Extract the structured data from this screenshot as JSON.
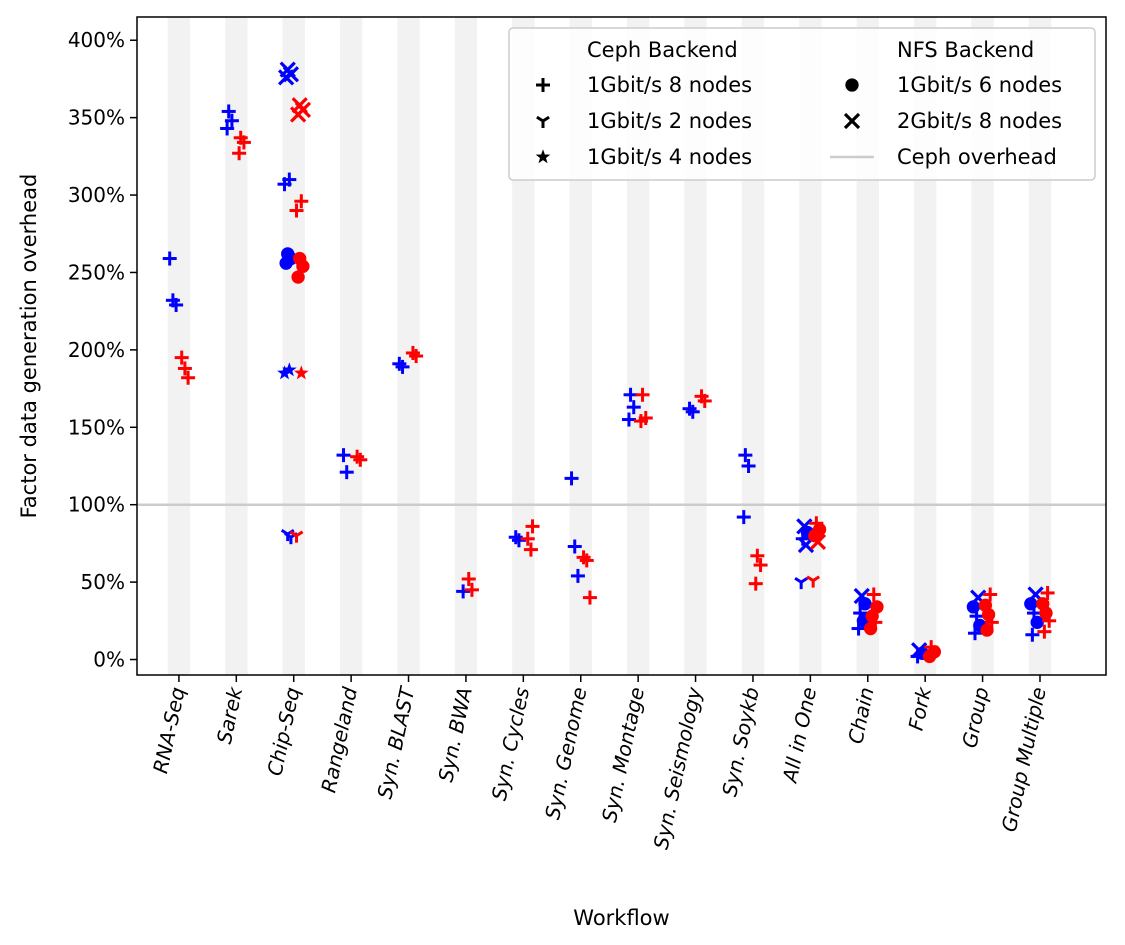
{
  "colors": {
    "ceph": "#ff0000",
    "nfs": "#0000ff",
    "overhead_line": "#cccccc",
    "band": "#f2f2f2"
  },
  "chart_data": {
    "type": "scatter",
    "xlabel": "Workflow",
    "ylabel": "Factor data generation overhead",
    "ylim": [
      -10,
      415
    ],
    "y_ticks": [
      "0%",
      "50%",
      "100%",
      "150%",
      "200%",
      "250%",
      "300%",
      "350%",
      "400%"
    ],
    "y_tick_values": [
      0,
      50,
      100,
      150,
      200,
      250,
      300,
      350,
      400
    ],
    "categories": [
      "RNA-Seq",
      "Sarek",
      "Chip-Seq",
      "Rangeland",
      "Syn. BLAST",
      "Syn. BWA",
      "Syn. Cycles",
      "Syn. Genome",
      "Syn. Montage",
      "Syn. Seismology",
      "Syn. Soykb",
      "All in One",
      "Chain",
      "Fork",
      "Group",
      "Group Multiple"
    ],
    "reference_line": {
      "y": 100,
      "label": "Ceph overhead"
    },
    "grid": false,
    "legend": {
      "position": "top-right",
      "ceph_header": "Ceph Backend",
      "nfs_header": "NFS Backend",
      "entries": [
        {
          "label": "1Gbit/s 8 nodes",
          "marker": "plus"
        },
        {
          "label": "1Gbit/s 2 nodes",
          "marker": "tri"
        },
        {
          "label": "1Gbit/s 4 nodes",
          "marker": "star"
        },
        {
          "label": "1Gbit/s 6 nodes",
          "marker": "circle"
        },
        {
          "label": "2Gbit/s 8 nodes",
          "marker": "x"
        },
        {
          "label": "Ceph overhead",
          "marker": "line"
        }
      ]
    },
    "series": [
      {
        "backend": "NFS",
        "points": [
          {
            "c": 0,
            "m": "plus",
            "y": 259
          },
          {
            "c": 0,
            "m": "plus",
            "y": 232
          },
          {
            "c": 0,
            "m": "plus",
            "y": 229
          },
          {
            "c": 1,
            "m": "plus",
            "y": 354
          },
          {
            "c": 1,
            "m": "plus",
            "y": 348
          },
          {
            "c": 1,
            "m": "plus",
            "y": 343
          },
          {
            "c": 2,
            "m": "x",
            "y": 381
          },
          {
            "c": 2,
            "m": "x",
            "y": 378
          },
          {
            "c": 2,
            "m": "x",
            "y": 376
          },
          {
            "c": 2,
            "m": "plus",
            "y": 310
          },
          {
            "c": 2,
            "m": "plus",
            "y": 307
          },
          {
            "c": 2,
            "m": "circle",
            "y": 262
          },
          {
            "c": 2,
            "m": "circle",
            "y": 259
          },
          {
            "c": 2,
            "m": "circle",
            "y": 256
          },
          {
            "c": 2,
            "m": "star",
            "y": 187
          },
          {
            "c": 2,
            "m": "star",
            "y": 185
          },
          {
            "c": 2,
            "m": "tri",
            "y": 81
          },
          {
            "c": 2,
            "m": "tri",
            "y": 79
          },
          {
            "c": 3,
            "m": "plus",
            "y": 132
          },
          {
            "c": 3,
            "m": "plus",
            "y": 121
          },
          {
            "c": 4,
            "m": "plus",
            "y": 191
          },
          {
            "c": 4,
            "m": "plus",
            "y": 189
          },
          {
            "c": 5,
            "m": "plus",
            "y": 44
          },
          {
            "c": 6,
            "m": "plus",
            "y": 79
          },
          {
            "c": 6,
            "m": "plus",
            "y": 77
          },
          {
            "c": 7,
            "m": "plus",
            "y": 117
          },
          {
            "c": 7,
            "m": "plus",
            "y": 73
          },
          {
            "c": 7,
            "m": "plus",
            "y": 54
          },
          {
            "c": 8,
            "m": "plus",
            "y": 171
          },
          {
            "c": 8,
            "m": "plus",
            "y": 163
          },
          {
            "c": 8,
            "m": "plus",
            "y": 155
          },
          {
            "c": 9,
            "m": "plus",
            "y": 162
          },
          {
            "c": 9,
            "m": "plus",
            "y": 160
          },
          {
            "c": 10,
            "m": "plus",
            "y": 132
          },
          {
            "c": 10,
            "m": "plus",
            "y": 125
          },
          {
            "c": 10,
            "m": "plus",
            "y": 92
          },
          {
            "c": 11,
            "m": "x",
            "y": 86
          },
          {
            "c": 11,
            "m": "circle",
            "y": 82
          },
          {
            "c": 11,
            "m": "plus",
            "y": 78
          },
          {
            "c": 11,
            "m": "x",
            "y": 74
          },
          {
            "c": 11,
            "m": "tri",
            "y": 50
          },
          {
            "c": 12,
            "m": "x",
            "y": 41
          },
          {
            "c": 12,
            "m": "circle",
            "y": 36
          },
          {
            "c": 12,
            "m": "plus",
            "y": 30
          },
          {
            "c": 12,
            "m": "circle",
            "y": 25
          },
          {
            "c": 12,
            "m": "plus",
            "y": 20
          },
          {
            "c": 13,
            "m": "x",
            "y": 6
          },
          {
            "c": 13,
            "m": "circle",
            "y": 4
          },
          {
            "c": 13,
            "m": "plus",
            "y": 2
          },
          {
            "c": 14,
            "m": "x",
            "y": 40
          },
          {
            "c": 14,
            "m": "circle",
            "y": 34
          },
          {
            "c": 14,
            "m": "plus",
            "y": 28
          },
          {
            "c": 14,
            "m": "circle",
            "y": 22
          },
          {
            "c": 14,
            "m": "plus",
            "y": 17
          },
          {
            "c": 15,
            "m": "x",
            "y": 42
          },
          {
            "c": 15,
            "m": "circle",
            "y": 36
          },
          {
            "c": 15,
            "m": "plus",
            "y": 30
          },
          {
            "c": 15,
            "m": "circle",
            "y": 24
          },
          {
            "c": 15,
            "m": "plus",
            "y": 16
          }
        ]
      },
      {
        "backend": "Ceph",
        "points": [
          {
            "c": 0,
            "m": "plus",
            "y": 195
          },
          {
            "c": 0,
            "m": "plus",
            "y": 188
          },
          {
            "c": 0,
            "m": "plus",
            "y": 182
          },
          {
            "c": 1,
            "m": "plus",
            "y": 337
          },
          {
            "c": 1,
            "m": "plus",
            "y": 334
          },
          {
            "c": 1,
            "m": "plus",
            "y": 327
          },
          {
            "c": 2,
            "m": "x",
            "y": 358
          },
          {
            "c": 2,
            "m": "x",
            "y": 355
          },
          {
            "c": 2,
            "m": "x",
            "y": 352
          },
          {
            "c": 2,
            "m": "plus",
            "y": 296
          },
          {
            "c": 2,
            "m": "plus",
            "y": 290
          },
          {
            "c": 2,
            "m": "circle",
            "y": 259
          },
          {
            "c": 2,
            "m": "circle",
            "y": 254
          },
          {
            "c": 2,
            "m": "circle",
            "y": 247
          },
          {
            "c": 2,
            "m": "star",
            "y": 185
          },
          {
            "c": 2,
            "m": "tri",
            "y": 80
          },
          {
            "c": 3,
            "m": "plus",
            "y": 131
          },
          {
            "c": 3,
            "m": "plus",
            "y": 129
          },
          {
            "c": 4,
            "m": "plus",
            "y": 198
          },
          {
            "c": 4,
            "m": "plus",
            "y": 196
          },
          {
            "c": 5,
            "m": "plus",
            "y": 52
          },
          {
            "c": 5,
            "m": "plus",
            "y": 45
          },
          {
            "c": 6,
            "m": "plus",
            "y": 86
          },
          {
            "c": 6,
            "m": "plus",
            "y": 78
          },
          {
            "c": 6,
            "m": "plus",
            "y": 71
          },
          {
            "c": 7,
            "m": "plus",
            "y": 66
          },
          {
            "c": 7,
            "m": "plus",
            "y": 64
          },
          {
            "c": 7,
            "m": "plus",
            "y": 40
          },
          {
            "c": 8,
            "m": "plus",
            "y": 171
          },
          {
            "c": 8,
            "m": "plus",
            "y": 156
          },
          {
            "c": 8,
            "m": "plus",
            "y": 154
          },
          {
            "c": 9,
            "m": "plus",
            "y": 170
          },
          {
            "c": 9,
            "m": "plus",
            "y": 167
          },
          {
            "c": 10,
            "m": "plus",
            "y": 67
          },
          {
            "c": 10,
            "m": "plus",
            "y": 61
          },
          {
            "c": 10,
            "m": "plus",
            "y": 49
          },
          {
            "c": 11,
            "m": "plus",
            "y": 88
          },
          {
            "c": 11,
            "m": "circle",
            "y": 84
          },
          {
            "c": 11,
            "m": "circle",
            "y": 80
          },
          {
            "c": 11,
            "m": "x",
            "y": 76
          },
          {
            "c": 11,
            "m": "tri",
            "y": 51
          },
          {
            "c": 12,
            "m": "plus",
            "y": 42
          },
          {
            "c": 12,
            "m": "circle",
            "y": 34
          },
          {
            "c": 12,
            "m": "circle",
            "y": 28
          },
          {
            "c": 12,
            "m": "plus",
            "y": 24
          },
          {
            "c": 12,
            "m": "circle",
            "y": 20
          },
          {
            "c": 13,
            "m": "plus",
            "y": 8
          },
          {
            "c": 13,
            "m": "circle",
            "y": 5
          },
          {
            "c": 13,
            "m": "circle",
            "y": 2
          },
          {
            "c": 14,
            "m": "plus",
            "y": 42
          },
          {
            "c": 14,
            "m": "circle",
            "y": 35
          },
          {
            "c": 14,
            "m": "circle",
            "y": 29
          },
          {
            "c": 14,
            "m": "plus",
            "y": 24
          },
          {
            "c": 14,
            "m": "circle",
            "y": 19
          },
          {
            "c": 15,
            "m": "plus",
            "y": 43
          },
          {
            "c": 15,
            "m": "circle",
            "y": 36
          },
          {
            "c": 15,
            "m": "circle",
            "y": 30
          },
          {
            "c": 15,
            "m": "plus",
            "y": 25
          },
          {
            "c": 15,
            "m": "plus",
            "y": 18
          }
        ]
      }
    ]
  }
}
